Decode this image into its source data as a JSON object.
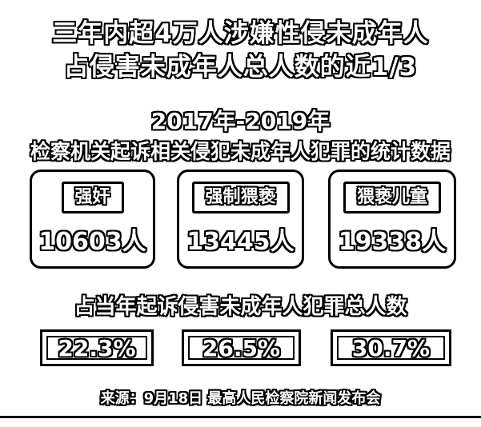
{
  "headline": {
    "line1": "三年内超4万人涉嫌性侵未成年人",
    "line2": "占侵害未成年人总人数的近1/3"
  },
  "period": "2017年-2019年",
  "subtitle": "检察机关起诉相关侵犯未成年人犯罪的统计数据",
  "categories": [
    {
      "label": "强奸",
      "count": "10603人"
    },
    {
      "label": "强制猥亵",
      "count": "13445人"
    },
    {
      "label": "猥亵儿童",
      "count": "19338人"
    }
  ],
  "share_title": "占当年起诉侵害未成年人犯罪总人数",
  "shares": [
    "22.3%",
    "26.5%",
    "30.7%"
  ],
  "source": "来源：9月18日 最高人民检察院新闻发布会"
}
